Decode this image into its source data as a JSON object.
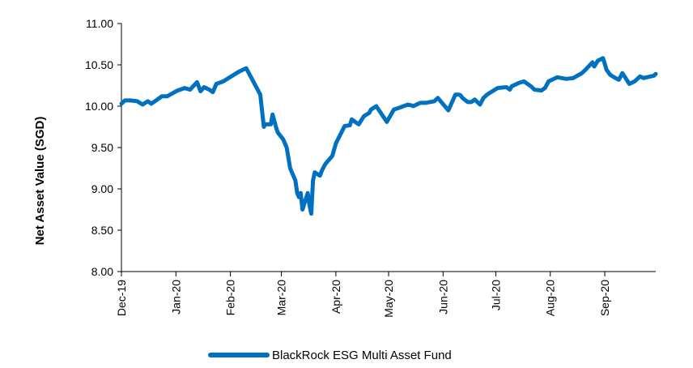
{
  "chart_data": {
    "type": "line",
    "title": "",
    "xlabel": "",
    "ylabel": "Net Asset Value (SGD)",
    "ylim": [
      8.0,
      11.0
    ],
    "yticks": [
      "8.00",
      "8.50",
      "9.00",
      "9.50",
      "10.00",
      "10.50",
      "11.00"
    ],
    "xticks": [
      "Dec-19",
      "Jan-20",
      "Feb-20",
      "Mar-20",
      "Apr-20",
      "May-20",
      "Jun-20",
      "Jul-20",
      "Aug-20",
      "Sep-20"
    ],
    "grid": false,
    "legend": "bottom",
    "series": [
      {
        "name": "BlackRock ESG Multi Asset Fund",
        "color": "#0070C0",
        "x": [
          "2019-12-01",
          "2019-12-03",
          "2019-12-06",
          "2019-12-10",
          "2019-12-13",
          "2019-12-16",
          "2019-12-18",
          "2019-12-20",
          "2019-12-24",
          "2019-12-27",
          "2020-01-02",
          "2020-01-06",
          "2020-01-09",
          "2020-01-13",
          "2020-01-15",
          "2020-01-17",
          "2020-01-20",
          "2020-01-22",
          "2020-01-24",
          "2020-01-28",
          "2020-01-31",
          "2020-02-03",
          "2020-02-06",
          "2020-02-10",
          "2020-02-14",
          "2020-02-18",
          "2020-02-20",
          "2020-02-21",
          "2020-02-24",
          "2020-02-25",
          "2020-02-27",
          "2020-02-28",
          "2020-03-02",
          "2020-03-04",
          "2020-03-06",
          "2020-03-09",
          "2020-03-10",
          "2020-03-11",
          "2020-03-12",
          "2020-03-13",
          "2020-03-16",
          "2020-03-17",
          "2020-03-18",
          "2020-03-19",
          "2020-03-20",
          "2020-03-23",
          "2020-03-24",
          "2020-03-26",
          "2020-03-30",
          "2020-04-01",
          "2020-04-06",
          "2020-04-09",
          "2020-04-10",
          "2020-04-14",
          "2020-04-17",
          "2020-04-20",
          "2020-04-21",
          "2020-04-24",
          "2020-04-30",
          "2020-05-04",
          "2020-05-07",
          "2020-05-12",
          "2020-05-14",
          "2020-05-15",
          "2020-05-19",
          "2020-05-22",
          "2020-05-27",
          "2020-05-29",
          "2020-06-04",
          "2020-06-08",
          "2020-06-10",
          "2020-06-11",
          "2020-06-12",
          "2020-06-15",
          "2020-06-17",
          "2020-06-19",
          "2020-06-22",
          "2020-06-24",
          "2020-06-26",
          "2020-06-29",
          "2020-07-02",
          "2020-07-07",
          "2020-07-09",
          "2020-07-10",
          "2020-07-14",
          "2020-07-17",
          "2020-07-21",
          "2020-07-23",
          "2020-07-27",
          "2020-07-29",
          "2020-07-31",
          "2020-08-05",
          "2020-08-10",
          "2020-08-14",
          "2020-08-19",
          "2020-08-21",
          "2020-08-25",
          "2020-08-26",
          "2020-08-28",
          "2020-08-31",
          "2020-09-02",
          "2020-09-04",
          "2020-09-07",
          "2020-09-09",
          "2020-09-11",
          "2020-09-15",
          "2020-09-18",
          "2020-09-21",
          "2020-09-23",
          "2020-09-25",
          "2020-09-29",
          "2020-09-30"
        ],
        "values": [
          10.03,
          10.07,
          10.07,
          10.06,
          10.02,
          10.06,
          10.03,
          10.06,
          10.12,
          10.12,
          10.19,
          10.22,
          10.2,
          10.29,
          10.18,
          10.23,
          10.2,
          10.17,
          10.27,
          10.3,
          10.34,
          10.38,
          10.42,
          10.46,
          10.3,
          10.14,
          9.75,
          9.78,
          9.78,
          9.9,
          9.74,
          9.68,
          9.6,
          9.5,
          9.25,
          9.1,
          8.95,
          8.9,
          8.95,
          8.75,
          8.95,
          8.8,
          8.7,
          9.1,
          9.2,
          9.16,
          9.22,
          9.3,
          9.4,
          9.55,
          9.76,
          9.77,
          9.84,
          9.78,
          9.88,
          9.92,
          9.96,
          10.0,
          9.81,
          9.96,
          9.98,
          10.02,
          10.01,
          10.0,
          10.04,
          10.04,
          10.06,
          10.1,
          9.95,
          10.14,
          10.14,
          10.13,
          10.1,
          10.05,
          10.05,
          10.08,
          10.02,
          10.1,
          10.14,
          10.18,
          10.22,
          10.23,
          10.2,
          10.24,
          10.28,
          10.3,
          10.24,
          10.2,
          10.19,
          10.22,
          10.3,
          10.35,
          10.33,
          10.34,
          10.4,
          10.44,
          10.53,
          10.48,
          10.55,
          10.58,
          10.44,
          10.38,
          10.34,
          10.32,
          10.4,
          10.27,
          10.3,
          10.36,
          10.34,
          10.35,
          10.37,
          10.39
        ]
      }
    ]
  }
}
